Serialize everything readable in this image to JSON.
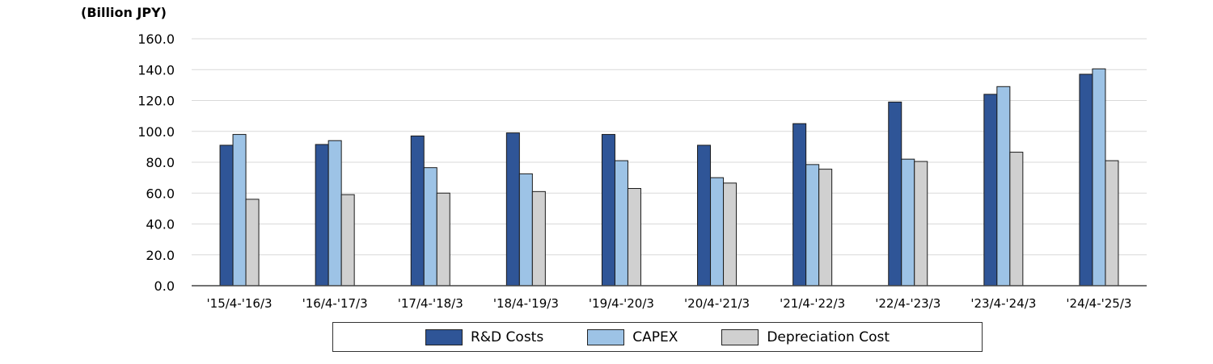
{
  "chart_data": {
    "type": "bar",
    "unit_label": "(Billion JPY)",
    "categories": [
      "'15/4-'16/3",
      "'16/4-'17/3",
      "'17/4-'18/3",
      "'18/4-'19/3",
      "'19/4-'20/3",
      "'20/4-'21/3",
      "'21/4-'22/3",
      "'22/4-'23/3",
      "'23/4-'24/3",
      "'24/4-'25/3"
    ],
    "series": [
      {
        "name": "R&D Costs",
        "color": "#2f5597",
        "values": [
          91.0,
          91.5,
          97.0,
          99.0,
          98.0,
          91.0,
          105.0,
          119.0,
          124.0,
          137.0
        ]
      },
      {
        "name": "CAPEX",
        "color": "#9dc3e6",
        "values": [
          98.0,
          94.0,
          76.5,
          72.5,
          81.0,
          70.0,
          78.5,
          82.0,
          129.0,
          140.5
        ]
      },
      {
        "name": "Depreciation Cost",
        "color": "#d0d0d0",
        "values": [
          56.0,
          59.0,
          60.0,
          61.0,
          63.0,
          66.5,
          75.5,
          80.5,
          86.5,
          81.0
        ]
      }
    ],
    "ylim": [
      0,
      160
    ],
    "yticks": [
      "0.0",
      "20.0",
      "40.0",
      "60.0",
      "80.0",
      "100.0",
      "120.0",
      "140.0",
      "160.0"
    ],
    "grid": true,
    "legend_position": "bottom"
  }
}
